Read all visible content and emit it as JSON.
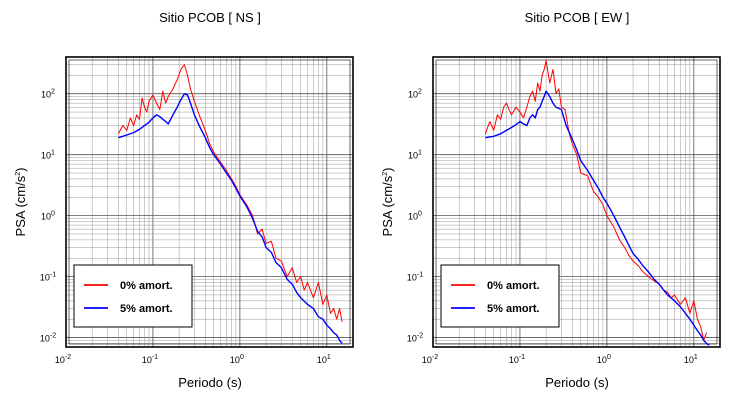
{
  "chart_data": [
    {
      "type": "line",
      "title": "Sitio PCOB [ NS ]",
      "xlabel": "Periodo (s)",
      "ylabel": "PSA (cm/s",
      "ylabel_sup": "2",
      "ylabel_close": ")",
      "xscale": "log",
      "yscale": "log",
      "xlim": [
        0.01,
        20
      ],
      "ylim": [
        0.007,
        400
      ],
      "grid": true,
      "legend_position": "bottom-left",
      "x_ticks": [
        {
          "base": "10",
          "exp": "-2"
        },
        {
          "base": "10",
          "exp": "-1"
        },
        {
          "base": "10",
          "exp": "0"
        },
        {
          "base": "10",
          "exp": "1"
        }
      ],
      "y_ticks": [
        {
          "base": "10",
          "exp": "-2"
        },
        {
          "base": "10",
          "exp": "-1"
        },
        {
          "base": "10",
          "exp": "0"
        },
        {
          "base": "10",
          "exp": "1"
        },
        {
          "base": "10",
          "exp": "2"
        }
      ],
      "series": [
        {
          "name": "0% amort.",
          "color": "#ff0000",
          "x": [
            0.04,
            0.045,
            0.05,
            0.055,
            0.06,
            0.065,
            0.07,
            0.075,
            0.08,
            0.085,
            0.09,
            0.1,
            0.11,
            0.12,
            0.13,
            0.14,
            0.15,
            0.17,
            0.19,
            0.21,
            0.23,
            0.25,
            0.27,
            0.3,
            0.34,
            0.4,
            0.45,
            0.5,
            0.6,
            0.7,
            0.8,
            0.9,
            1.0,
            1.2,
            1.4,
            1.6,
            1.8,
            2.0,
            2.3,
            2.6,
            3.0,
            3.5,
            4.0,
            4.5,
            5.0,
            5.5,
            6.0,
            7.0,
            8.0,
            9.0,
            10.0,
            11.0,
            12.0,
            13.0,
            14.0,
            15.0
          ],
          "y": [
            22,
            30,
            25,
            40,
            30,
            45,
            38,
            85,
            60,
            50,
            75,
            95,
            70,
            55,
            110,
            70,
            90,
            120,
            170,
            250,
            300,
            200,
            120,
            75,
            45,
            25,
            15,
            11,
            7.5,
            5.5,
            4.0,
            3.0,
            2.2,
            1.5,
            1.0,
            0.5,
            0.6,
            0.35,
            0.38,
            0.2,
            0.18,
            0.1,
            0.14,
            0.08,
            0.1,
            0.06,
            0.08,
            0.045,
            0.08,
            0.035,
            0.05,
            0.025,
            0.03,
            0.02,
            0.03,
            0.018
          ]
        },
        {
          "name": "5% amort.",
          "color": "#0000ff",
          "x": [
            0.04,
            0.05,
            0.06,
            0.07,
            0.08,
            0.09,
            0.1,
            0.11,
            0.12,
            0.13,
            0.14,
            0.15,
            0.17,
            0.19,
            0.21,
            0.23,
            0.25,
            0.27,
            0.3,
            0.34,
            0.4,
            0.45,
            0.5,
            0.6,
            0.7,
            0.8,
            0.9,
            1.0,
            1.2,
            1.4,
            1.6,
            1.8,
            2.0,
            2.3,
            2.6,
            3.0,
            3.5,
            4.0,
            4.5,
            5.0,
            6.0,
            7.0,
            8.0,
            9.0,
            10.0,
            11.0,
            12.0,
            13.0,
            14.0,
            15.0
          ],
          "y": [
            19,
            21,
            23,
            26,
            30,
            34,
            40,
            45,
            42,
            38,
            35,
            32,
            45,
            60,
            80,
            100,
            95,
            70,
            45,
            30,
            19,
            13,
            10,
            7,
            5,
            3.8,
            2.8,
            2.1,
            1.4,
            0.9,
            0.55,
            0.45,
            0.3,
            0.25,
            0.17,
            0.14,
            0.09,
            0.075,
            0.055,
            0.045,
            0.035,
            0.03,
            0.022,
            0.02,
            0.016,
            0.014,
            0.012,
            0.011,
            0.009,
            0.008
          ]
        }
      ]
    },
    {
      "type": "line",
      "title": "Sitio PCOB [ EW ]",
      "xlabel": "Periodo (s)",
      "ylabel": "PSA (cm/s",
      "ylabel_sup": "2",
      "ylabel_close": ")",
      "xscale": "log",
      "yscale": "log",
      "xlim": [
        0.01,
        20
      ],
      "ylim": [
        0.007,
        400
      ],
      "grid": true,
      "legend_position": "bottom-left",
      "x_ticks": [
        {
          "base": "10",
          "exp": "-2"
        },
        {
          "base": "10",
          "exp": "-1"
        },
        {
          "base": "10",
          "exp": "0"
        },
        {
          "base": "10",
          "exp": "1"
        }
      ],
      "y_ticks": [
        {
          "base": "10",
          "exp": "-2"
        },
        {
          "base": "10",
          "exp": "-1"
        },
        {
          "base": "10",
          "exp": "0"
        },
        {
          "base": "10",
          "exp": "1"
        },
        {
          "base": "10",
          "exp": "2"
        }
      ],
      "series": [
        {
          "name": "0% amort.",
          "color": "#ff0000",
          "x": [
            0.04,
            0.045,
            0.05,
            0.055,
            0.06,
            0.065,
            0.07,
            0.075,
            0.08,
            0.09,
            0.1,
            0.11,
            0.12,
            0.13,
            0.14,
            0.15,
            0.16,
            0.17,
            0.18,
            0.19,
            0.2,
            0.22,
            0.24,
            0.26,
            0.28,
            0.3,
            0.33,
            0.37,
            0.4,
            0.45,
            0.5,
            0.6,
            0.7,
            0.8,
            0.9,
            1.0,
            1.2,
            1.4,
            1.6,
            1.8,
            2.0,
            2.3,
            2.6,
            3.0,
            3.5,
            4.0,
            4.5,
            5.0,
            5.5,
            6.0,
            7.0,
            8.0,
            9.0,
            10.0,
            11.0,
            12.0,
            13.0,
            14.0
          ],
          "y": [
            22,
            35,
            25,
            45,
            38,
            60,
            70,
            55,
            45,
            60,
            50,
            40,
            60,
            90,
            110,
            75,
            150,
            110,
            200,
            250,
            350,
            150,
            250,
            100,
            120,
            60,
            55,
            22,
            15,
            10,
            5,
            4.5,
            2.5,
            2.0,
            1.5,
            1.0,
            0.65,
            0.4,
            0.3,
            0.22,
            0.18,
            0.15,
            0.12,
            0.1,
            0.085,
            0.075,
            0.06,
            0.055,
            0.045,
            0.05,
            0.035,
            0.045,
            0.025,
            0.04,
            0.02,
            0.015,
            0.009,
            0.012
          ]
        },
        {
          "name": "5% amort.",
          "color": "#0000ff",
          "x": [
            0.04,
            0.05,
            0.06,
            0.07,
            0.08,
            0.09,
            0.1,
            0.11,
            0.12,
            0.13,
            0.14,
            0.15,
            0.16,
            0.17,
            0.18,
            0.19,
            0.2,
            0.22,
            0.24,
            0.26,
            0.3,
            0.34,
            0.4,
            0.45,
            0.5,
            0.6,
            0.7,
            0.8,
            0.9,
            1.0,
            1.2,
            1.4,
            1.6,
            1.8,
            2.0,
            2.3,
            2.6,
            3.0,
            3.5,
            4.0,
            4.5,
            5.0,
            6.0,
            7.0,
            8.0,
            9.0,
            10.0,
            11.0,
            12.0,
            13.0,
            14.0,
            15.0
          ],
          "y": [
            19,
            20,
            22,
            25,
            28,
            31,
            35,
            32,
            30,
            40,
            45,
            40,
            55,
            60,
            75,
            90,
            110,
            90,
            70,
            60,
            55,
            30,
            18,
            12,
            8,
            5.5,
            3.8,
            2.8,
            2.0,
            1.6,
            1.0,
            0.65,
            0.45,
            0.32,
            0.24,
            0.19,
            0.15,
            0.12,
            0.09,
            0.075,
            0.06,
            0.05,
            0.04,
            0.032,
            0.025,
            0.02,
            0.016,
            0.013,
            0.011,
            0.009,
            0.008,
            0.0075
          ]
        }
      ]
    }
  ]
}
